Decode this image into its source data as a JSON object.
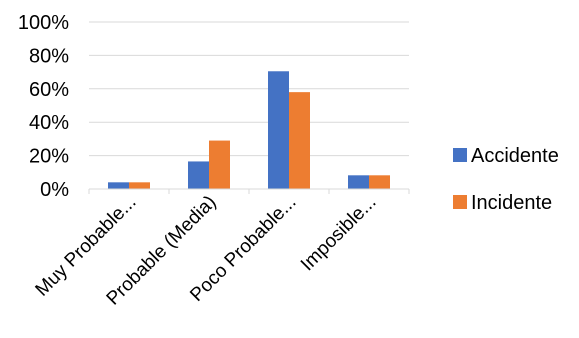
{
  "chart_data": {
    "type": "bar",
    "categories": [
      "Muy Probable...",
      "Probable (Media)",
      "Poco Probable...",
      "Imposible..."
    ],
    "series": [
      {
        "name": "Accidente",
        "color": "#4472C4",
        "values": [
          4,
          16.5,
          70.5,
          8.2
        ]
      },
      {
        "name": "Incidente",
        "color": "#ED7D31",
        "values": [
          4,
          29,
          58,
          8.2
        ]
      }
    ],
    "y_ticks": [
      "0%",
      "20%",
      "40%",
      "60%",
      "80%",
      "100%"
    ],
    "ylim": [
      0,
      100
    ],
    "y_unit": "%",
    "grid": true,
    "gridline_color": "#D9D9D9",
    "legend_position": "right"
  }
}
